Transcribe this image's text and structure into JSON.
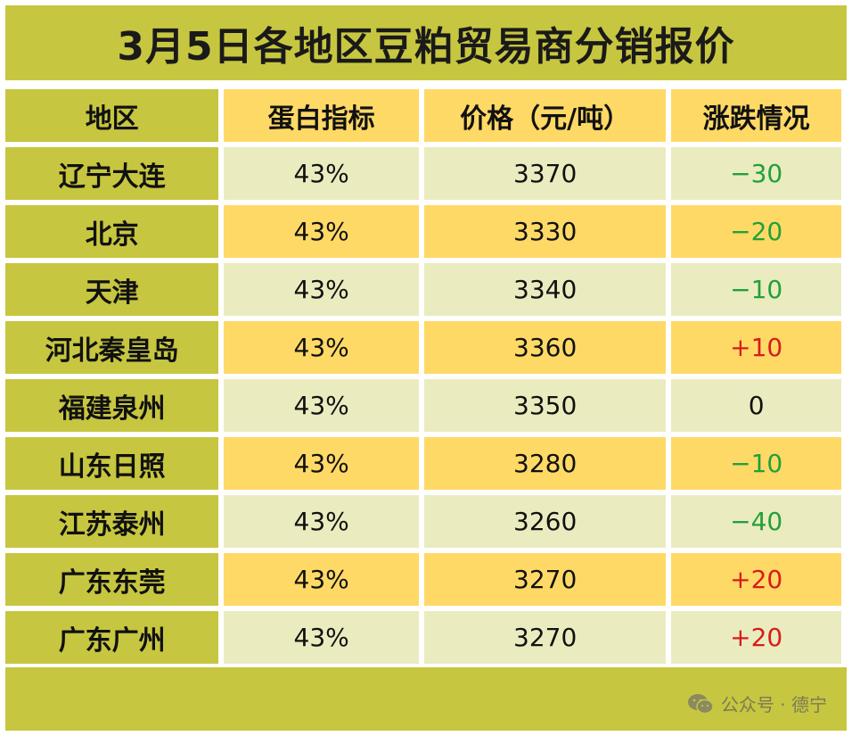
{
  "title": "3月5日各地区豆粕贸易商分销报价",
  "headers": [
    "地区",
    "蛋白指标",
    "价格（元/吨）",
    "涨跌情况"
  ],
  "rows": [
    {
      "region": "辽宁大连",
      "protein": "43%",
      "price": "3370",
      "change": "−30",
      "trend": "down"
    },
    {
      "region": "北京",
      "protein": "43%",
      "price": "3330",
      "change": "−20",
      "trend": "down"
    },
    {
      "region": "天津",
      "protein": "43%",
      "price": "3340",
      "change": "−10",
      "trend": "down"
    },
    {
      "region": "河北秦皇岛",
      "protein": "43%",
      "price": "3360",
      "change": "+10",
      "trend": "up"
    },
    {
      "region": "福建泉州",
      "protein": "43%",
      "price": "3350",
      "change": "0",
      "trend": "flat"
    },
    {
      "region": "山东日照",
      "protein": "43%",
      "price": "3280",
      "change": "−10",
      "trend": "down"
    },
    {
      "region": "江苏泰州",
      "protein": "43%",
      "price": "3260",
      "change": "−40",
      "trend": "down"
    },
    {
      "region": "广东东莞",
      "protein": "43%",
      "price": "3270",
      "change": "+20",
      "trend": "up"
    },
    {
      "region": "广东广州",
      "protein": "43%",
      "price": "3270",
      "change": "+20",
      "trend": "up"
    }
  ],
  "watermark": {
    "icon": "wechat-icon",
    "text": "公众号 · 德宁"
  },
  "colors": {
    "olive": "#c7c640",
    "gold": "#ffd966",
    "light": "#ebebc0",
    "down": "#22a03a",
    "up": "#d61c1c"
  }
}
